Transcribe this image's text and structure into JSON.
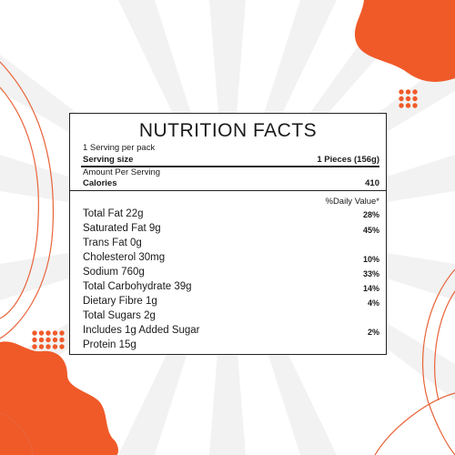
{
  "colors": {
    "accent": "#f05a28",
    "line": "#e8643a",
    "text": "#1a1a1a"
  },
  "nutrition": {
    "title": "NUTRITION FACTS",
    "servings_per_pack": "1 Serving per pack",
    "serving_size_label": "Serving size",
    "serving_size_value": "1 Pieces (156g)",
    "amount_per_serving": "Amount Per Serving",
    "calories_label": "Calories",
    "calories_value": "410",
    "daily_value_header": "%Daily Value*",
    "nutrients": [
      {
        "label": "Total Fat 22g",
        "dv": "28%"
      },
      {
        "label": "Saturated Fat 9g",
        "dv": "45%"
      },
      {
        "label": "Trans Fat 0g",
        "dv": ""
      },
      {
        "label": "Cholesterol 30mg",
        "dv": "10%"
      },
      {
        "label": "Sodium 760g",
        "dv": "33%"
      },
      {
        "label": "Total Carbohydrate 39g",
        "dv": "14%"
      },
      {
        "label": "Dietary Fibre 1g",
        "dv": "4%"
      },
      {
        "label": "Total Sugars 2g",
        "dv": ""
      },
      {
        "label": "Includes 1g Added Sugar",
        "dv": "2%"
      },
      {
        "label": "Protein 15g",
        "dv": ""
      }
    ]
  }
}
